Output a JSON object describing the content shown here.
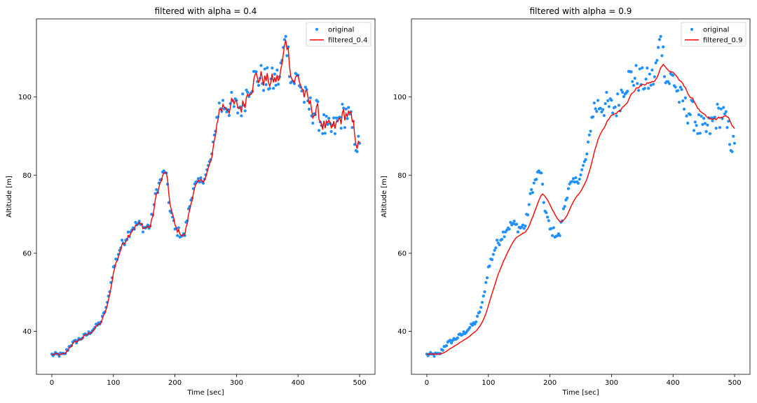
{
  "chart_data": [
    {
      "type": "scatter+line",
      "title": "filtered with alpha = 0.4",
      "xlabel": "Time [sec]",
      "ylabel": "Altitude [m]",
      "xlim": [
        -25,
        525
      ],
      "ylim": [
        29,
        120
      ],
      "xticks": [
        0,
        100,
        200,
        300,
        400,
        500
      ],
      "yticks": [
        40,
        60,
        80,
        100
      ],
      "legend": {
        "position": "top-right",
        "entries": [
          "original",
          "filtered_0.4"
        ]
      },
      "colors": {
        "original": "#1e90ff",
        "filtered": "#ff0000"
      },
      "alpha": 0.4,
      "series": [
        {
          "name": "original",
          "kind": "points",
          "x": [
            0,
            10,
            20,
            30,
            40,
            50,
            60,
            70,
            80,
            90,
            100,
            110,
            120,
            130,
            140,
            150,
            160,
            170,
            180,
            185,
            190,
            200,
            210,
            215,
            220,
            230,
            240,
            250,
            260,
            270,
            280,
            290,
            300,
            310,
            320,
            330,
            340,
            350,
            360,
            370,
            380,
            390,
            400,
            410,
            420,
            430,
            440,
            450,
            460,
            470,
            480,
            490,
            500
          ],
          "y": [
            34,
            34,
            34,
            36.5,
            37.5,
            38.5,
            39.5,
            41,
            42.5,
            47,
            56,
            61,
            64,
            66.5,
            67.5,
            66.5,
            67,
            76,
            80,
            81.5,
            73,
            66,
            65,
            64,
            69,
            77,
            78,
            80,
            85,
            97,
            98,
            98,
            97,
            98,
            103,
            105,
            105,
            104,
            104,
            105,
            115.5,
            104,
            105,
            100,
            97,
            96,
            93,
            91,
            92,
            95,
            96,
            91,
            86
          ]
        },
        {
          "name": "filtered_0.4",
          "kind": "line"
        }
      ]
    },
    {
      "type": "scatter+line",
      "title": "filtered with alpha = 0.9",
      "xlabel": "Time [sec]",
      "ylabel": "Altitude [m]",
      "xlim": [
        -25,
        525
      ],
      "ylim": [
        29,
        120
      ],
      "xticks": [
        0,
        100,
        200,
        300,
        400,
        500
      ],
      "yticks": [
        40,
        60,
        80,
        100
      ],
      "legend": {
        "position": "top-right",
        "entries": [
          "original",
          "filtered_0.9"
        ]
      },
      "colors": {
        "original": "#1e90ff",
        "filtered": "#ff0000"
      },
      "alpha": 0.9,
      "series": [
        {
          "name": "original",
          "kind": "points",
          "same_as_chart": 0
        },
        {
          "name": "filtered_0.9",
          "kind": "line"
        }
      ]
    }
  ]
}
